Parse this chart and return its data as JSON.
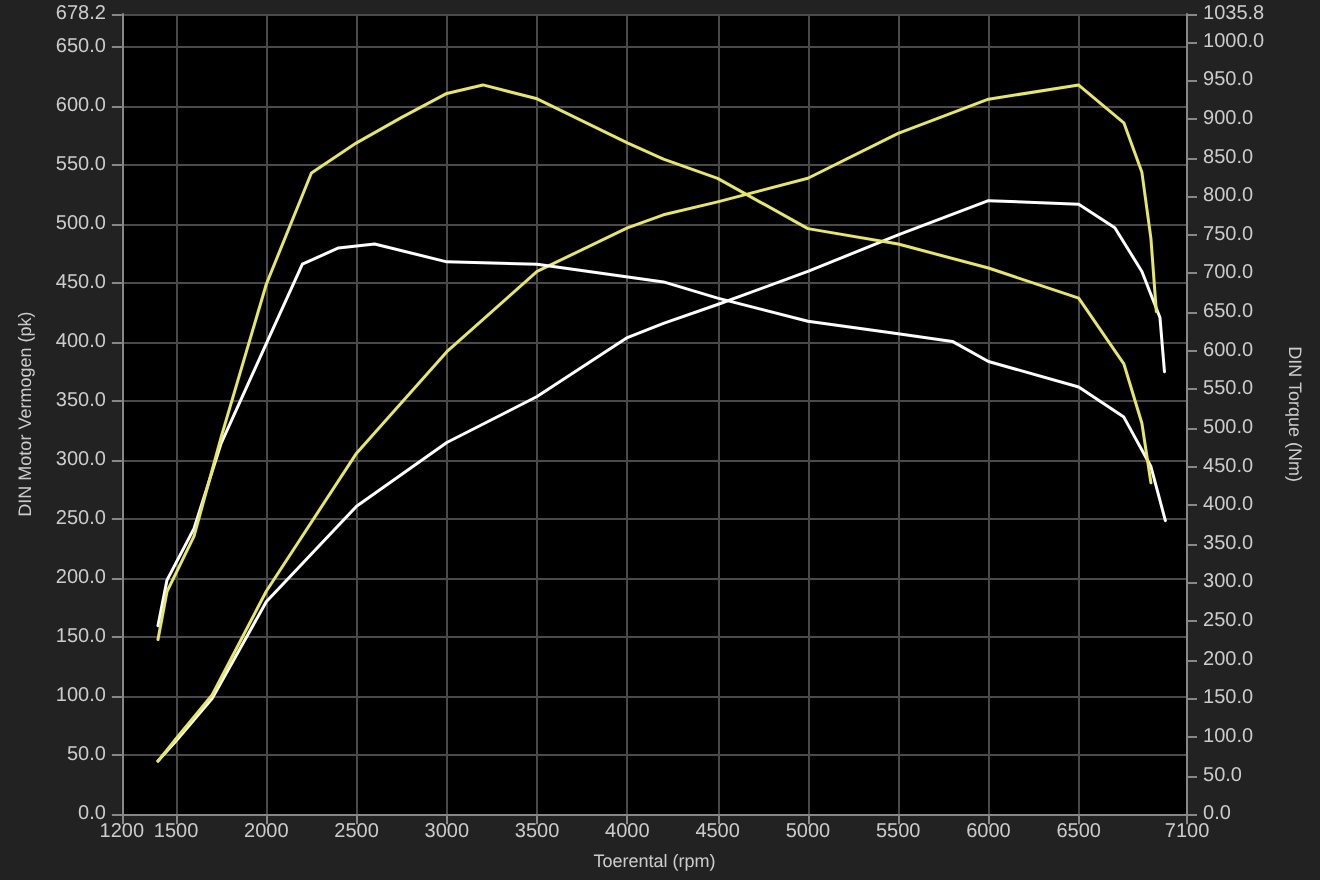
{
  "chart_data": {
    "type": "line",
    "xlabel": "Toerental (rpm)",
    "ylabel": "DIN Motor Vermogen (pk)",
    "y2label": "DIN Torque (Nm)",
    "xlim": [
      1200,
      7100
    ],
    "xticks": [
      1200,
      1500,
      2000,
      2500,
      3000,
      3500,
      4000,
      4500,
      5000,
      5500,
      6000,
      6500,
      7100
    ],
    "ylim": [
      0,
      678.2
    ],
    "yticks": [
      {
        "value": 0,
        "label": "0.0"
      },
      {
        "value": 50,
        "label": "50.0"
      },
      {
        "value": 100,
        "label": "100.0"
      },
      {
        "value": 150,
        "label": "150.0"
      },
      {
        "value": 200,
        "label": "200.0"
      },
      {
        "value": 250,
        "label": "250.0"
      },
      {
        "value": 300,
        "label": "300.0"
      },
      {
        "value": 350,
        "label": "350.0"
      },
      {
        "value": 400,
        "label": "400.0"
      },
      {
        "value": 450,
        "label": "450.0"
      },
      {
        "value": 500,
        "label": "500.0"
      },
      {
        "value": 550,
        "label": "550.0"
      },
      {
        "value": 600,
        "label": "600.0"
      },
      {
        "value": 650,
        "label": "650.0"
      },
      678.2
    ],
    "y2lim": [
      0,
      1035.8
    ],
    "y2ticks": [
      {
        "value": 0,
        "label": "0.0"
      },
      {
        "value": 50,
        "label": "50.0"
      },
      {
        "value": 100,
        "label": "100.0"
      },
      {
        "value": 150,
        "label": "150.0"
      },
      {
        "value": 200,
        "label": "200.0"
      },
      {
        "value": 250,
        "label": "250.0"
      },
      {
        "value": 300,
        "label": "300.0"
      },
      {
        "value": 350,
        "label": "350.0"
      },
      {
        "value": 400,
        "label": "400.0"
      },
      {
        "value": 450,
        "label": "450.0"
      },
      {
        "value": 500,
        "label": "500.0"
      },
      {
        "value": 550,
        "label": "550.0"
      },
      {
        "value": 600,
        "label": "600.0"
      },
      {
        "value": 650,
        "label": "650.0"
      },
      {
        "value": 700,
        "label": "700.0"
      },
      {
        "value": 750,
        "label": "750.0"
      },
      {
        "value": 800,
        "label": "800.0"
      },
      {
        "value": 850,
        "label": "850.0"
      },
      {
        "value": 900,
        "label": "900.0"
      },
      {
        "value": 950,
        "label": "950.0"
      },
      {
        "value": 1000,
        "label": "1000.0"
      },
      1035.8
    ],
    "grid": true,
    "marker": "none",
    "line_style": "solid",
    "series": [
      {
        "color": "#ffffff",
        "x": [
          1400,
          1500,
          1700,
          2000,
          2500,
          3000,
          3500,
          4000,
          4200,
          4500,
          5000,
          5500,
          6000,
          6500,
          6700,
          6850,
          6950,
          6975
        ],
        "values": [
          45,
          62,
          98,
          180,
          261,
          315,
          354,
          404,
          416,
          432,
          460,
          491,
          520,
          517,
          497,
          460,
          421,
          375
        ]
      },
      {
        "color": "#e6e66a",
        "x": [
          1400,
          1500,
          1700,
          2000,
          2500,
          3000,
          3500,
          4000,
          4200,
          4500,
          5000,
          5500,
          6000,
          6500,
          6750,
          6850,
          6900,
          6930
        ],
        "values": [
          45,
          64,
          101,
          189,
          306,
          392,
          460,
          497,
          508,
          519,
          539,
          577,
          606,
          618,
          586,
          544,
          488,
          426
        ]
      },
      {
        "color": "#ffffff",
        "axis": "y2",
        "x": [
          1400,
          1450,
          1600,
          1750,
          2000,
          2200,
          2400,
          2600,
          3000,
          3500,
          4200,
          4500,
          5000,
          5500,
          5800,
          6000,
          6500,
          6750,
          6900,
          6980
        ],
        "values": [
          244,
          303,
          370,
          480,
          609,
          712,
          733,
          738,
          715,
          712,
          689,
          668,
          638,
          622,
          612,
          586,
          553,
          514,
          450,
          380
        ]
      },
      {
        "color": "#e6e66a",
        "axis": "y2",
        "x": [
          1400,
          1450,
          1600,
          1750,
          2000,
          2250,
          2500,
          2750,
          3000,
          3200,
          3500,
          4000,
          4200,
          4500,
          5000,
          5500,
          6000,
          6500,
          6750,
          6850,
          6900
        ],
        "values": [
          226,
          288,
          360,
          488,
          686,
          830,
          869,
          902,
          933,
          944,
          926,
          869,
          848,
          823,
          758,
          738,
          707,
          668,
          583,
          506,
          429
        ]
      }
    ]
  }
}
